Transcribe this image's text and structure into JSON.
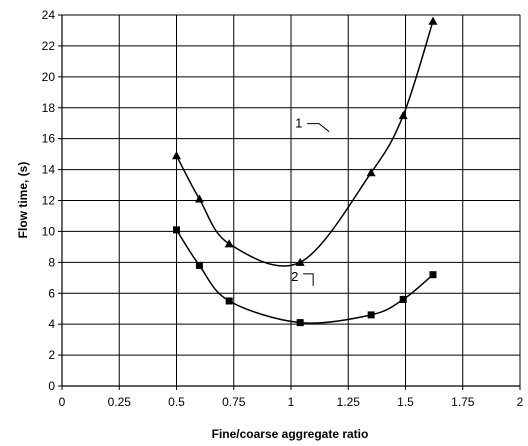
{
  "chart_data": {
    "type": "line",
    "title": "",
    "xlabel": "Fine/coarse aggregate ratio",
    "ylabel": "Flow time, (s)",
    "xlim": [
      0,
      2
    ],
    "ylim": [
      0,
      24
    ],
    "xticks": [
      0,
      0.25,
      0.5,
      0.75,
      1,
      1.25,
      1.5,
      1.75,
      2
    ],
    "xtick_labels": [
      "0",
      "0.25",
      "0.5",
      "0.75",
      "1",
      "1.25",
      "1.5",
      "1.75",
      "2"
    ],
    "yticks": [
      0,
      2,
      4,
      6,
      8,
      10,
      12,
      14,
      16,
      18,
      20,
      22,
      24
    ],
    "ytick_labels": [
      "0",
      "2",
      "4",
      "6",
      "8",
      "10",
      "12",
      "14",
      "16",
      "18",
      "20",
      "22",
      "24"
    ],
    "grid": true,
    "legend": "none",
    "series": [
      {
        "name": "1",
        "marker": "triangle",
        "color": "#000000",
        "x": [
          0.5,
          0.6,
          0.73,
          1.04,
          1.35,
          1.49,
          1.62
        ],
        "y": [
          14.9,
          12.1,
          9.2,
          8.0,
          13.8,
          17.5,
          23.6
        ]
      },
      {
        "name": "2",
        "marker": "square",
        "color": "#000000",
        "x": [
          0.5,
          0.6,
          0.73,
          1.04,
          1.35,
          1.49,
          1.62
        ],
        "y": [
          10.1,
          7.8,
          5.5,
          4.1,
          4.6,
          5.6,
          7.2
        ]
      }
    ]
  }
}
